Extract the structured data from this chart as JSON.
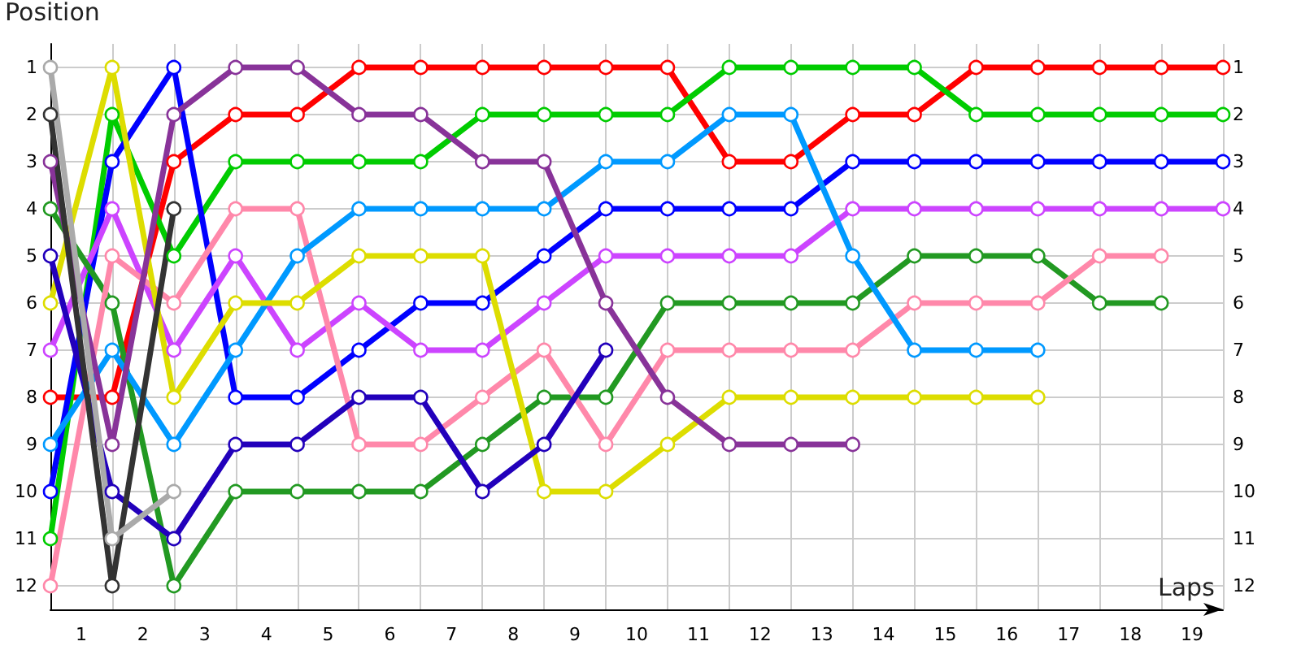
{
  "chart_data": {
    "type": "line",
    "xlabel": "Laps",
    "ylabel": "Position",
    "x": [
      0,
      1,
      2,
      3,
      4,
      5,
      6,
      7,
      8,
      9,
      10,
      11,
      12,
      13,
      14,
      15,
      16,
      17,
      18,
      19
    ],
    "xlim": [
      0,
      19
    ],
    "xticks": [
      {
        "value": 0,
        "label": null
      },
      {
        "value": 0.5,
        "label": "1"
      },
      {
        "value": 1,
        "label": null
      },
      {
        "value": 1.5,
        "label": "2"
      },
      {
        "value": 2,
        "label": null
      },
      {
        "value": 2.5,
        "label": "3"
      },
      {
        "value": 3,
        "label": null
      },
      {
        "value": 3.5,
        "label": "4"
      },
      {
        "value": 4,
        "label": null
      },
      {
        "value": 4.5,
        "label": "5"
      },
      {
        "value": 5,
        "label": null
      },
      {
        "value": 5.5,
        "label": "6"
      },
      {
        "value": 6,
        "label": null
      },
      {
        "value": 6.5,
        "label": "7"
      },
      {
        "value": 7,
        "label": null
      },
      {
        "value": 7.5,
        "label": "8"
      },
      {
        "value": 8,
        "label": null
      },
      {
        "value": 8.5,
        "label": "9"
      },
      {
        "value": 9,
        "label": null
      },
      {
        "value": 9.5,
        "label": "10"
      },
      {
        "value": 10,
        "label": null
      },
      {
        "value": 10.5,
        "label": "11"
      },
      {
        "value": 11,
        "label": null
      },
      {
        "value": 11.5,
        "label": "12"
      },
      {
        "value": 12,
        "label": null
      },
      {
        "value": 12.5,
        "label": "13"
      },
      {
        "value": 13,
        "label": null
      },
      {
        "value": 13.5,
        "label": "14"
      },
      {
        "value": 14,
        "label": null
      },
      {
        "value": 14.5,
        "label": "15"
      },
      {
        "value": 15,
        "label": null
      },
      {
        "value": 15.5,
        "label": "16"
      },
      {
        "value": 16,
        "label": null
      },
      {
        "value": 16.5,
        "label": "17"
      },
      {
        "value": 17,
        "label": null
      },
      {
        "value": 17.5,
        "label": "18"
      },
      {
        "value": 18,
        "label": null
      },
      {
        "value": 18.5,
        "label": "19"
      },
      {
        "value": 19,
        "label": null
      }
    ],
    "ylim": [
      12.5,
      0.5
    ],
    "yticks": [
      1,
      2,
      3,
      4,
      5,
      6,
      7,
      8,
      9,
      10,
      11,
      12
    ],
    "y2lim": [
      12.5,
      0.5
    ],
    "y2ticks": [
      1,
      2,
      3,
      4,
      5,
      6,
      7,
      8,
      9,
      10,
      11,
      12
    ],
    "grid": true,
    "marker": "circle",
    "line_style": "solid",
    "series": [
      {
        "color": "#ff0000",
        "values": [
          8,
          8,
          3,
          2,
          2,
          1,
          1,
          1,
          1,
          1,
          1,
          3,
          3,
          2,
          2,
          1,
          1,
          1,
          1,
          1
        ]
      },
      {
        "color": "#00cc00",
        "values": [
          11,
          2,
          5,
          3,
          3,
          3,
          3,
          2,
          2,
          2,
          2,
          1,
          1,
          1,
          1,
          2,
          2,
          2,
          2,
          2
        ]
      },
      {
        "color": "#0000ff",
        "values": [
          10,
          3,
          1,
          8,
          8,
          7,
          6,
          6,
          5,
          4,
          4,
          4,
          4,
          3,
          3,
          3,
          3,
          3,
          3,
          3
        ]
      },
      {
        "color": "#cc44ff",
        "values": [
          7,
          4,
          7,
          5,
          7,
          6,
          7,
          7,
          6,
          5,
          5,
          5,
          5,
          4,
          4,
          4,
          4,
          4,
          4,
          4
        ]
      },
      {
        "color": "#229922",
        "values": [
          4,
          6,
          12,
          10,
          10,
          10,
          10,
          9,
          8,
          8,
          6,
          6,
          6,
          6,
          5,
          5,
          5,
          6,
          6,
          null
        ]
      },
      {
        "color": "#ff88aa",
        "values": [
          12,
          5,
          6,
          4,
          4,
          9,
          9,
          8,
          7,
          9,
          7,
          7,
          7,
          7,
          6,
          6,
          6,
          5,
          5,
          null
        ]
      },
      {
        "color": "#0099ff",
        "values": [
          9,
          7,
          9,
          7,
          5,
          4,
          4,
          4,
          4,
          3,
          3,
          2,
          2,
          5,
          7,
          7,
          7,
          null,
          null,
          null
        ]
      },
      {
        "color": "#dddd00",
        "values": [
          6,
          1,
          8,
          6,
          6,
          5,
          5,
          5,
          10,
          10,
          9,
          8,
          8,
          8,
          8,
          8,
          8,
          null,
          null,
          null
        ]
      },
      {
        "color": "#883399",
        "values": [
          3,
          9,
          2,
          1,
          1,
          2,
          2,
          3,
          3,
          6,
          8,
          9,
          9,
          9,
          null,
          null,
          null,
          null,
          null,
          null
        ]
      },
      {
        "color": "#2200bb",
        "values": [
          5,
          10,
          11,
          9,
          9,
          8,
          8,
          10,
          9,
          7,
          null,
          null,
          null,
          null,
          null,
          null,
          null,
          null,
          null,
          null
        ]
      },
      {
        "color": "#333333",
        "values": [
          2,
          12,
          4,
          null,
          null,
          null,
          null,
          null,
          null,
          null,
          null,
          null,
          null,
          null,
          null,
          null,
          null,
          null,
          null,
          null
        ]
      },
      {
        "color": "#aaaaaa",
        "values": [
          1,
          11,
          10,
          null,
          null,
          null,
          null,
          null,
          null,
          null,
          null,
          null,
          null,
          null,
          null,
          null,
          null,
          null,
          null,
          null
        ]
      }
    ]
  }
}
